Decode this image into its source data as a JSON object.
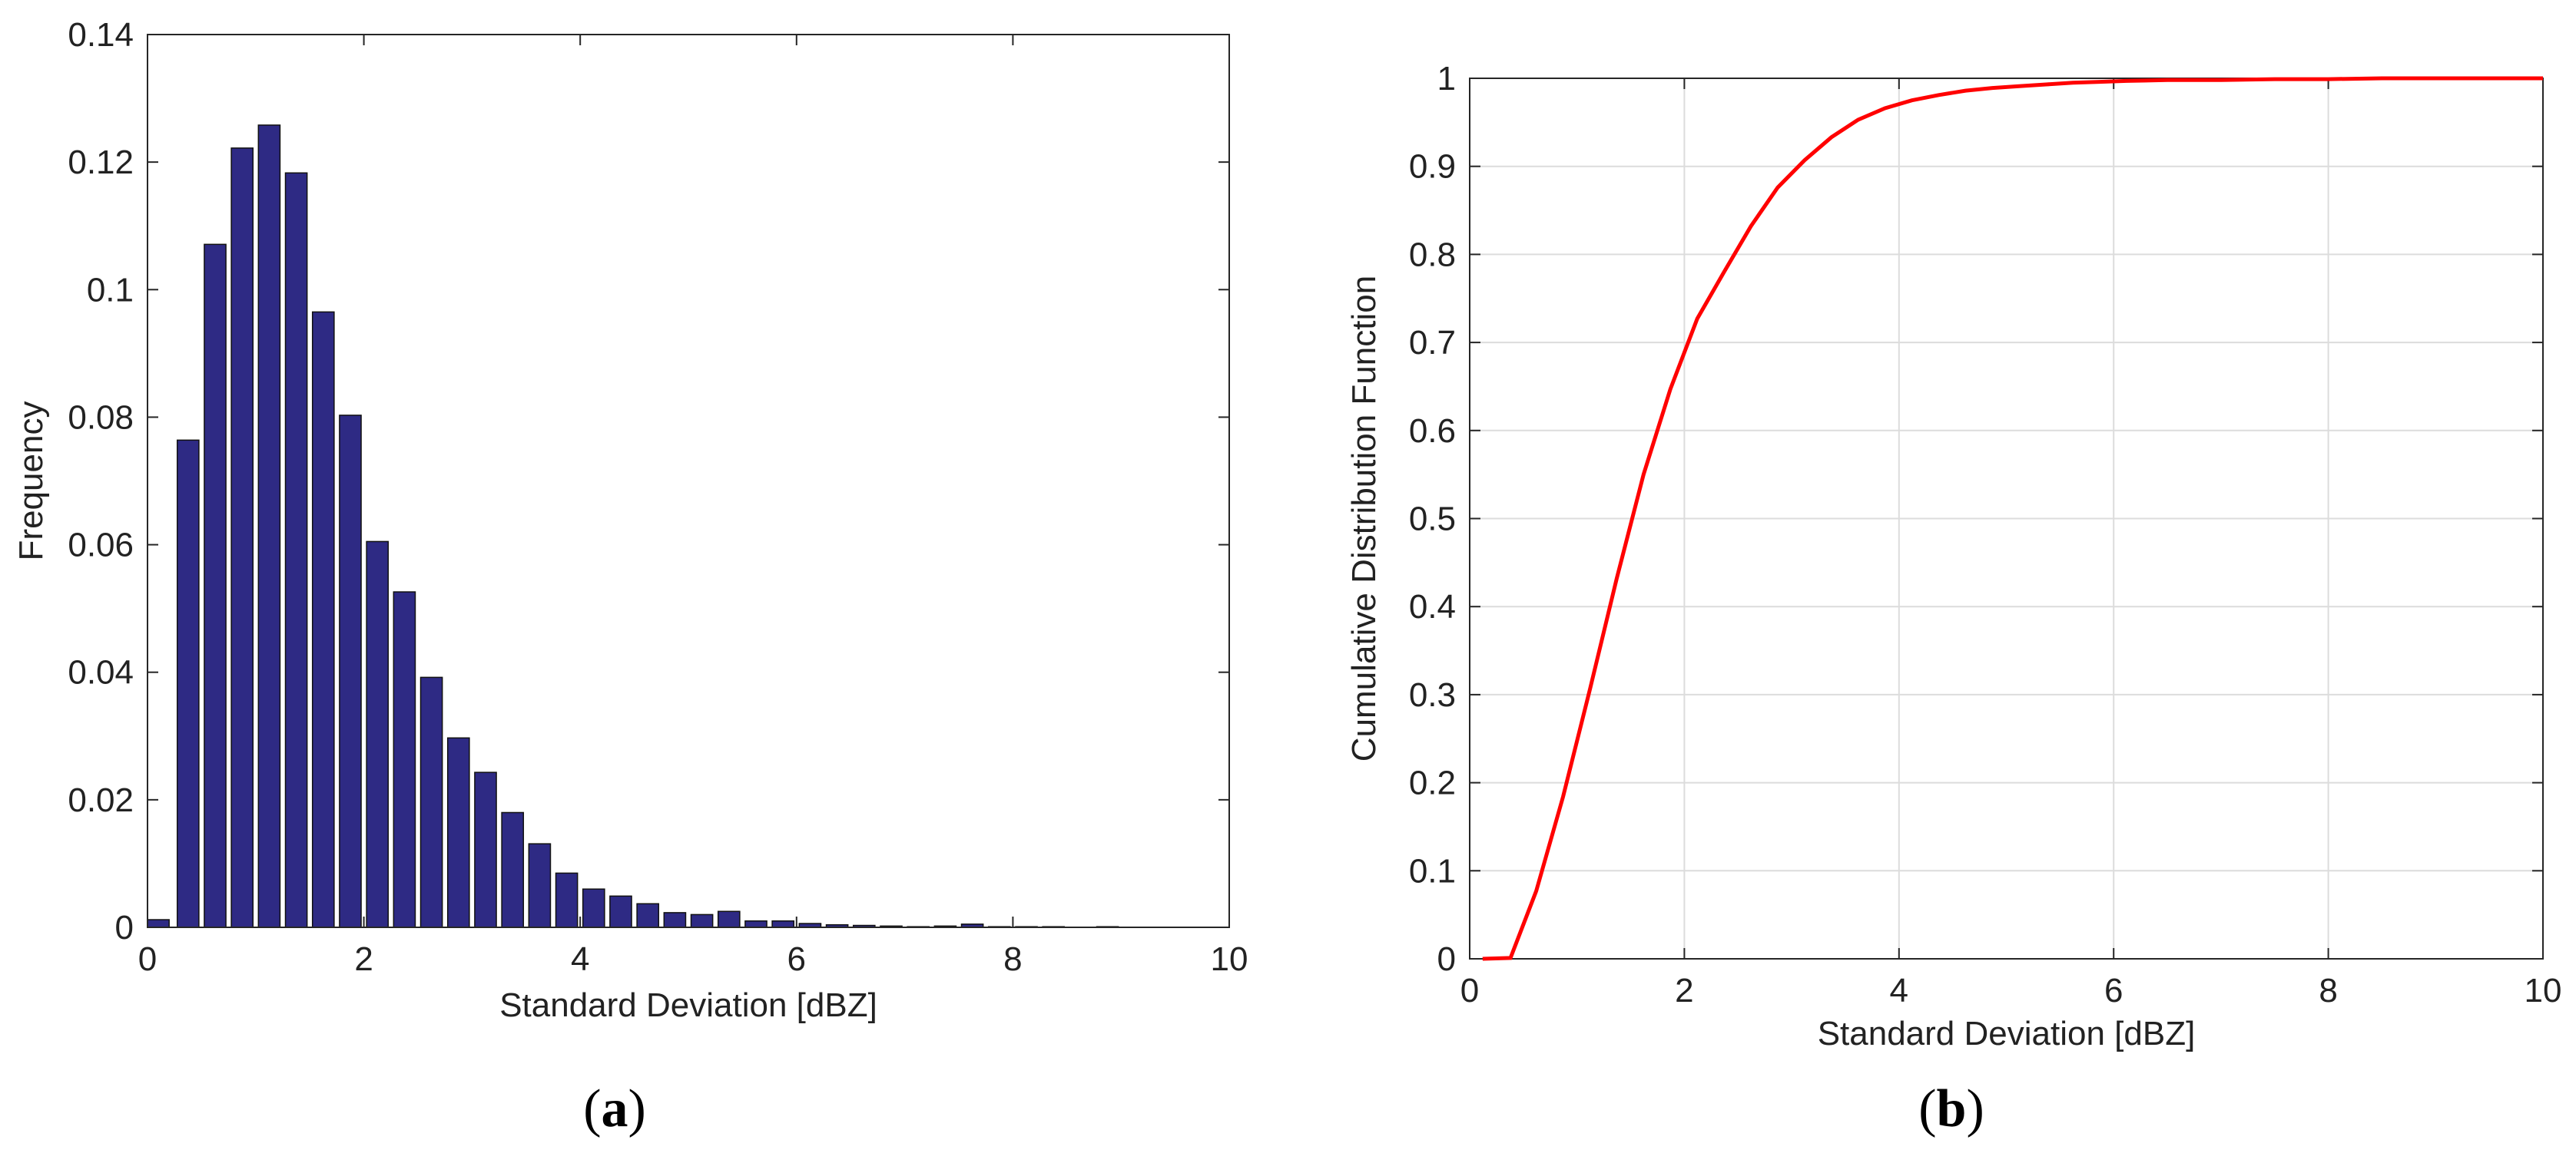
{
  "panels": {
    "a_label": "a",
    "b_label": "b"
  },
  "chart_data": [
    {
      "type": "bar",
      "title": "",
      "xlabel": "Standard Deviation [dBZ]",
      "ylabel": "Frequency",
      "xlim": [
        0,
        10
      ],
      "ylim": [
        0,
        0.14
      ],
      "xticks": [
        0,
        2,
        4,
        6,
        8,
        10
      ],
      "xtick_labels": [
        "0",
        "2",
        "4",
        "6",
        "8",
        "10"
      ],
      "yticks": [
        0,
        0.02,
        0.04,
        0.06,
        0.08,
        0.1,
        0.12,
        0.14
      ],
      "ytick_labels": [
        "0",
        "0.02",
        "0.04",
        "0.06",
        "0.08",
        "0.1",
        "0.12",
        "0.14"
      ],
      "bar_width": 0.2,
      "x": [
        0.1,
        0.375,
        0.625,
        0.875,
        1.125,
        1.375,
        1.625,
        1.875,
        2.125,
        2.375,
        2.625,
        2.875,
        3.125,
        3.375,
        3.625,
        3.875,
        4.125,
        4.375,
        4.625,
        4.875,
        5.125,
        5.375,
        5.625,
        5.875,
        6.125,
        6.375,
        6.625,
        6.875,
        7.125,
        7.375,
        7.625,
        7.875,
        8.125,
        8.375,
        8.625,
        8.875
      ],
      "values": [
        0.0012,
        0.0764,
        0.1071,
        0.1222,
        0.1258,
        0.1183,
        0.0965,
        0.0803,
        0.0605,
        0.0526,
        0.0392,
        0.0297,
        0.0243,
        0.018,
        0.0131,
        0.0085,
        0.006,
        0.0049,
        0.0037,
        0.0023,
        0.002,
        0.0025,
        0.001,
        0.001,
        0.0006,
        0.0004,
        0.0003,
        0.0002,
        0.0001,
        0.0002,
        0.0005,
        0.0001,
        0.0001,
        0.0001,
        0.0,
        0.0001
      ],
      "bar_color": "#2e2a84",
      "bar_edge": "#111111",
      "grid": false
    },
    {
      "type": "line",
      "title": "",
      "xlabel": "Standard Deviation [dBZ]",
      "ylabel": "Cumulative Distribution Function",
      "xlim": [
        0,
        10
      ],
      "ylim": [
        0,
        1
      ],
      "xticks": [
        0,
        2,
        4,
        6,
        8,
        10
      ],
      "xtick_labels": [
        "0",
        "2",
        "4",
        "6",
        "8",
        "10"
      ],
      "yticks": [
        0,
        0.1,
        0.2,
        0.3,
        0.4,
        0.5,
        0.6,
        0.7,
        0.8,
        0.9,
        1
      ],
      "ytick_labels": [
        "0",
        "0.1",
        "0.2",
        "0.3",
        "0.4",
        "0.5",
        "0.6",
        "0.7",
        "0.8",
        "0.9",
        "1"
      ],
      "series": [
        {
          "x": [
            0.12,
            0.38,
            0.62,
            0.87,
            1.12,
            1.37,
            1.62,
            1.87,
            2.12,
            2.37,
            2.62,
            2.87,
            3.12,
            3.37,
            3.62,
            3.87,
            4.12,
            4.37,
            4.62,
            4.87,
            5.12,
            5.37,
            5.62,
            5.87,
            6.12,
            6.5,
            7,
            7.5,
            8,
            8.5,
            9,
            9.5,
            10
          ],
          "y": [
            0,
            0.001,
            0.077,
            0.184,
            0.306,
            0.432,
            0.55,
            0.647,
            0.727,
            0.78,
            0.832,
            0.876,
            0.907,
            0.933,
            0.953,
            0.966,
            0.975,
            0.981,
            0.986,
            0.989,
            0.991,
            0.993,
            0.995,
            0.996,
            0.997,
            0.998,
            0.998,
            0.999,
            0.999,
            1.0,
            1.0,
            1.0,
            1.0
          ],
          "color": "#ff0000"
        }
      ],
      "grid": true
    }
  ]
}
